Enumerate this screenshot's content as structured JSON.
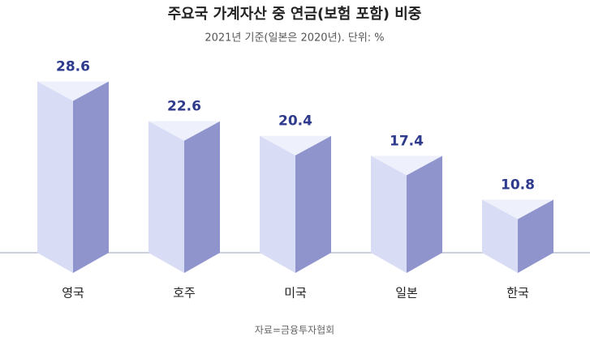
{
  "chart_data": {
    "type": "bar",
    "title": "주요국 가계자산 중 연금(보험 포함) 비중",
    "subtitle": "2021년 기준(일본은 2020년). 단위: %",
    "categories": [
      "영국",
      "호주",
      "미국",
      "일본",
      "한국"
    ],
    "values": [
      28.6,
      22.6,
      20.4,
      17.4,
      10.8
    ],
    "color": "#8f94cd",
    "source": "자료=금융투자협회"
  }
}
